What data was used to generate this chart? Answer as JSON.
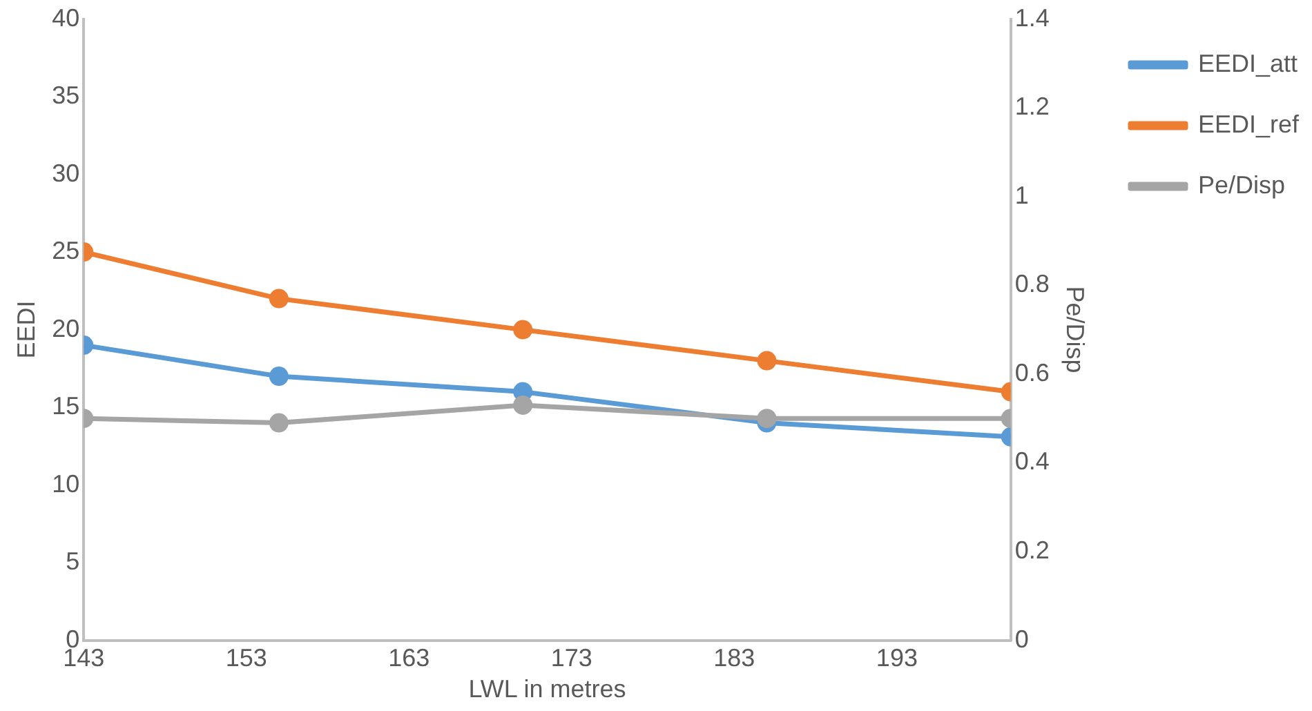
{
  "chart_data": {
    "type": "line",
    "xlabel": "LWL in metres",
    "ylabel": "EEDI",
    "y2label": "Pe/Disp",
    "x": [
      143,
      155,
      170,
      185,
      200
    ],
    "xlim": [
      143,
      200
    ],
    "xticks": [
      143,
      153,
      163,
      173,
      183,
      193
    ],
    "ylim": [
      0,
      40
    ],
    "yticks": [
      0,
      5,
      10,
      15,
      20,
      25,
      30,
      35,
      40
    ],
    "y2lim": [
      0,
      1.4
    ],
    "y2ticks": [
      0,
      0.2,
      0.4,
      0.6,
      0.8,
      1,
      1.2,
      1.4
    ],
    "grid": false,
    "legend": "top right",
    "marker": "circle",
    "series": [
      {
        "name": "EEDI_att",
        "color": "#5b9bd5",
        "values": [
          19,
          17,
          16,
          14,
          13.1
        ]
      },
      {
        "name": "EEDI_ref",
        "color": "#ed7d31",
        "values": [
          25,
          22,
          20,
          18,
          16
        ]
      },
      {
        "name": "Pe/Disp",
        "color": "#a5a5a5",
        "axis": "y2",
        "values": [
          0.5,
          0.49,
          0.53,
          0.5,
          0.5
        ]
      }
    ]
  }
}
